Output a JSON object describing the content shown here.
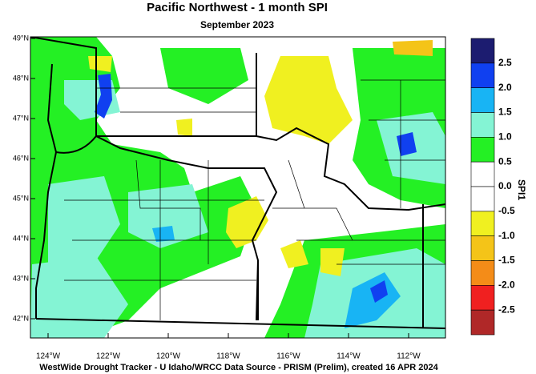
{
  "header": {
    "title": "Pacific Northwest - 1 month SPI",
    "subtitle": "September 2023"
  },
  "map": {
    "lat_labels": [
      "49°N",
      "48°N",
      "47°N",
      "46°N",
      "45°N",
      "44°N",
      "43°N",
      "42°N"
    ],
    "lon_labels": [
      "124°W",
      "122°W",
      "120°W",
      "118°W",
      "116°W",
      "114°W",
      "112°W"
    ]
  },
  "colorbar": {
    "title": "SPI1",
    "colors": [
      "#1c1c70",
      "#1040f0",
      "#18b4f4",
      "#84f4d4",
      "#24f024",
      "#ffffff",
      "#ffffff",
      "#f0f020",
      "#f4c418",
      "#f48c18",
      "#f02020",
      "#b02828"
    ],
    "labels": [
      "2.5",
      "2.0",
      "1.5",
      "1.0",
      "0.5",
      "0.0",
      "-0.5",
      "-1.0",
      "-1.5",
      "-2.0",
      "-2.5"
    ]
  },
  "footer": "WestWide Drought Tracker - U Idaho/WRCC  Data Source - PRISM (Prelim), created 16 APR 2024"
}
